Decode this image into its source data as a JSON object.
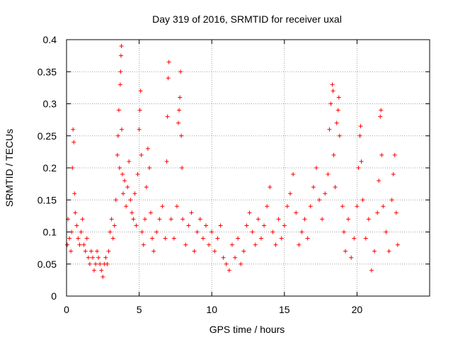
{
  "chart_data": {
    "type": "scatter",
    "title": "Day 319 of 2016, SRMTID for receiver uxal",
    "xlabel": "GPS time / hours",
    "ylabel": "SRMTID / TECUs",
    "xlim": [
      0,
      25
    ],
    "ylim": [
      0,
      0.4
    ],
    "x_ticks": [
      0,
      5,
      10,
      15,
      20
    ],
    "y_ticks": [
      0,
      0.05,
      0.1,
      0.15,
      0.2,
      0.25,
      0.3,
      0.35,
      0.4
    ],
    "x_tick_labels": [
      "0",
      "5",
      "10",
      "15",
      "20"
    ],
    "y_tick_labels": [
      "0",
      "0.05",
      "0.1",
      "0.15",
      "0.2",
      "0.25",
      "0.3",
      "0.35",
      "0.4"
    ],
    "grid": true,
    "marker": "+",
    "colors": {
      "series": "#ff0000",
      "grid": "#a0a0a0",
      "axis": "#000000"
    },
    "series": [
      {
        "name": "SRMTID",
        "points": [
          [
            0.05,
            0.08
          ],
          [
            0.1,
            0.12
          ],
          [
            0.2,
            0.09
          ],
          [
            0.3,
            0.07
          ],
          [
            0.35,
            0.1
          ],
          [
            0.4,
            0.2
          ],
          [
            0.45,
            0.26
          ],
          [
            0.5,
            0.24
          ],
          [
            0.55,
            0.16
          ],
          [
            0.6,
            0.13
          ],
          [
            0.7,
            0.11
          ],
          [
            0.8,
            0.09
          ],
          [
            0.9,
            0.08
          ],
          [
            1.0,
            0.1
          ],
          [
            1.1,
            0.12
          ],
          [
            1.2,
            0.08
          ],
          [
            1.3,
            0.07
          ],
          [
            1.4,
            0.09
          ],
          [
            1.5,
            0.06
          ],
          [
            1.6,
            0.05
          ],
          [
            1.7,
            0.07
          ],
          [
            1.8,
            0.06
          ],
          [
            1.9,
            0.04
          ],
          [
            2.0,
            0.05
          ],
          [
            2.1,
            0.07
          ],
          [
            2.2,
            0.06
          ],
          [
            2.3,
            0.05
          ],
          [
            2.4,
            0.04
          ],
          [
            2.5,
            0.03
          ],
          [
            2.6,
            0.05
          ],
          [
            2.7,
            0.06
          ],
          [
            2.8,
            0.05
          ],
          [
            2.9,
            0.07
          ],
          [
            3.0,
            0.1
          ],
          [
            3.1,
            0.12
          ],
          [
            3.2,
            0.09
          ],
          [
            3.3,
            0.11
          ],
          [
            3.4,
            0.15
          ],
          [
            3.5,
            0.22
          ],
          [
            3.55,
            0.25
          ],
          [
            3.6,
            0.29
          ],
          [
            3.65,
            0.2
          ],
          [
            3.7,
            0.33
          ],
          [
            3.72,
            0.35
          ],
          [
            3.75,
            0.375
          ],
          [
            3.78,
            0.39
          ],
          [
            3.8,
            0.26
          ],
          [
            3.85,
            0.19
          ],
          [
            3.9,
            0.16
          ],
          [
            4.0,
            0.18
          ],
          [
            4.1,
            0.14
          ],
          [
            4.2,
            0.17
          ],
          [
            4.3,
            0.21
          ],
          [
            4.4,
            0.15
          ],
          [
            4.5,
            0.13
          ],
          [
            4.6,
            0.12
          ],
          [
            4.7,
            0.16
          ],
          [
            4.8,
            0.11
          ],
          [
            4.9,
            0.19
          ],
          [
            5.0,
            0.26
          ],
          [
            5.05,
            0.29
          ],
          [
            5.1,
            0.32
          ],
          [
            5.15,
            0.22
          ],
          [
            5.2,
            0.1
          ],
          [
            5.3,
            0.08
          ],
          [
            5.4,
            0.12
          ],
          [
            5.5,
            0.17
          ],
          [
            5.6,
            0.23
          ],
          [
            5.7,
            0.2
          ],
          [
            5.8,
            0.13
          ],
          [
            5.9,
            0.09
          ],
          [
            6.0,
            0.07
          ],
          [
            6.2,
            0.1
          ],
          [
            6.4,
            0.12
          ],
          [
            6.6,
            0.14
          ],
          [
            6.8,
            0.09
          ],
          [
            6.9,
            0.21
          ],
          [
            6.95,
            0.28
          ],
          [
            7.0,
            0.34
          ],
          [
            7.05,
            0.365
          ],
          [
            7.2,
            0.12
          ],
          [
            7.4,
            0.09
          ],
          [
            7.6,
            0.14
          ],
          [
            7.7,
            0.27
          ],
          [
            7.75,
            0.29
          ],
          [
            7.8,
            0.31
          ],
          [
            7.85,
            0.35
          ],
          [
            7.9,
            0.25
          ],
          [
            7.95,
            0.2
          ],
          [
            8.0,
            0.12
          ],
          [
            8.2,
            0.08
          ],
          [
            8.4,
            0.11
          ],
          [
            8.6,
            0.13
          ],
          [
            8.8,
            0.07
          ],
          [
            9.0,
            0.1
          ],
          [
            9.2,
            0.12
          ],
          [
            9.4,
            0.09
          ],
          [
            9.6,
            0.11
          ],
          [
            9.8,
            0.08
          ],
          [
            10.0,
            0.1
          ],
          [
            10.2,
            0.07
          ],
          [
            10.4,
            0.09
          ],
          [
            10.6,
            0.11
          ],
          [
            10.8,
            0.06
          ],
          [
            11.0,
            0.05
          ],
          [
            11.2,
            0.04
          ],
          [
            11.4,
            0.08
          ],
          [
            11.6,
            0.06
          ],
          [
            11.8,
            0.09
          ],
          [
            12.0,
            0.05
          ],
          [
            12.2,
            0.07
          ],
          [
            12.4,
            0.11
          ],
          [
            12.6,
            0.13
          ],
          [
            12.8,
            0.1
          ],
          [
            13.0,
            0.08
          ],
          [
            13.2,
            0.12
          ],
          [
            13.4,
            0.09
          ],
          [
            13.6,
            0.11
          ],
          [
            13.8,
            0.14
          ],
          [
            14.0,
            0.17
          ],
          [
            14.2,
            0.1
          ],
          [
            14.4,
            0.08
          ],
          [
            14.6,
            0.12
          ],
          [
            14.8,
            0.09
          ],
          [
            15.0,
            0.11
          ],
          [
            15.2,
            0.14
          ],
          [
            15.4,
            0.16
          ],
          [
            15.6,
            0.19
          ],
          [
            15.8,
            0.13
          ],
          [
            16.0,
            0.08
          ],
          [
            16.2,
            0.1
          ],
          [
            16.4,
            0.12
          ],
          [
            16.6,
            0.09
          ],
          [
            16.8,
            0.14
          ],
          [
            17.0,
            0.17
          ],
          [
            17.2,
            0.2
          ],
          [
            17.4,
            0.15
          ],
          [
            17.6,
            0.12
          ],
          [
            17.8,
            0.16
          ],
          [
            18.0,
            0.19
          ],
          [
            18.1,
            0.26
          ],
          [
            18.2,
            0.3
          ],
          [
            18.3,
            0.33
          ],
          [
            18.35,
            0.32
          ],
          [
            18.4,
            0.22
          ],
          [
            18.5,
            0.17
          ],
          [
            18.6,
            0.27
          ],
          [
            18.7,
            0.29
          ],
          [
            18.75,
            0.31
          ],
          [
            18.8,
            0.25
          ],
          [
            19.0,
            0.14
          ],
          [
            19.1,
            0.1
          ],
          [
            19.2,
            0.07
          ],
          [
            19.4,
            0.12
          ],
          [
            19.6,
            0.06
          ],
          [
            19.8,
            0.09
          ],
          [
            20.0,
            0.14
          ],
          [
            20.1,
            0.2
          ],
          [
            20.2,
            0.25
          ],
          [
            20.25,
            0.265
          ],
          [
            20.3,
            0.21
          ],
          [
            20.4,
            0.15
          ],
          [
            20.6,
            0.09
          ],
          [
            20.8,
            0.12
          ],
          [
            21.0,
            0.04
          ],
          [
            21.2,
            0.07
          ],
          [
            21.4,
            0.13
          ],
          [
            21.5,
            0.18
          ],
          [
            21.6,
            0.28
          ],
          [
            21.65,
            0.29
          ],
          [
            21.7,
            0.22
          ],
          [
            21.8,
            0.14
          ],
          [
            22.0,
            0.1
          ],
          [
            22.2,
            0.07
          ],
          [
            22.4,
            0.15
          ],
          [
            22.5,
            0.19
          ],
          [
            22.6,
            0.22
          ],
          [
            22.7,
            0.13
          ],
          [
            22.8,
            0.08
          ]
        ]
      }
    ]
  }
}
